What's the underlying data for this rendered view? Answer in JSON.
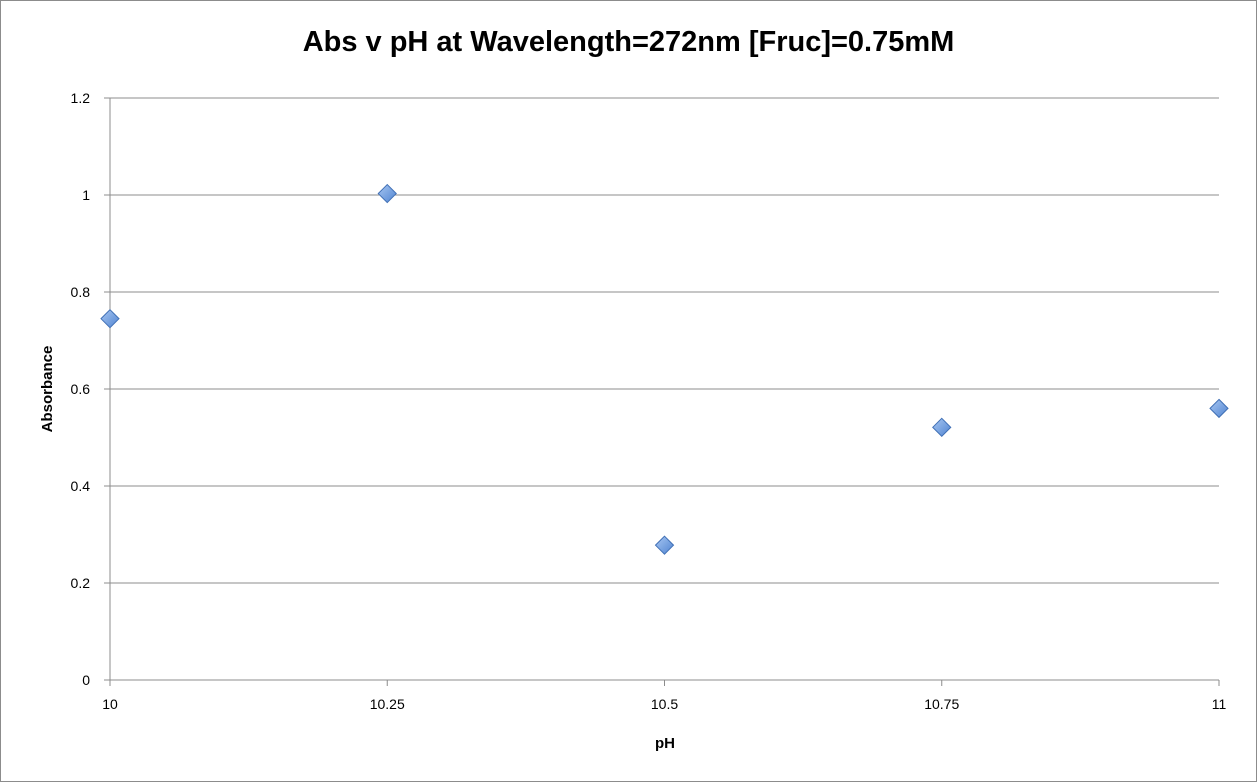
{
  "chart_data": {
    "type": "scatter",
    "title": "Abs v pH at Wavelength=272nm [Fruc]=0.75mM",
    "xlabel": "pH",
    "ylabel": "Absorbance",
    "xlim": [
      10,
      11
    ],
    "ylim": [
      0,
      1.2
    ],
    "x_ticks": [
      "10",
      "10.25",
      "10.5",
      "10.75",
      "11"
    ],
    "y_ticks": [
      "0",
      "0.2",
      "0.4",
      "0.6",
      "0.8",
      "1",
      "1.2"
    ],
    "grid": "horizontal",
    "legend": "none",
    "marker": "diamond",
    "colors": {
      "marker_fill": "#6f9ee3",
      "marker_stroke": "#3f6fb5",
      "gridline": "#8c8c8c",
      "axis": "#8c8c8c"
    },
    "series": [
      {
        "x": [
          10,
          10.25,
          10.5,
          10.75,
          11
        ],
        "y": [
          0.745,
          1.003,
          0.278,
          0.521,
          0.56
        ]
      }
    ]
  }
}
